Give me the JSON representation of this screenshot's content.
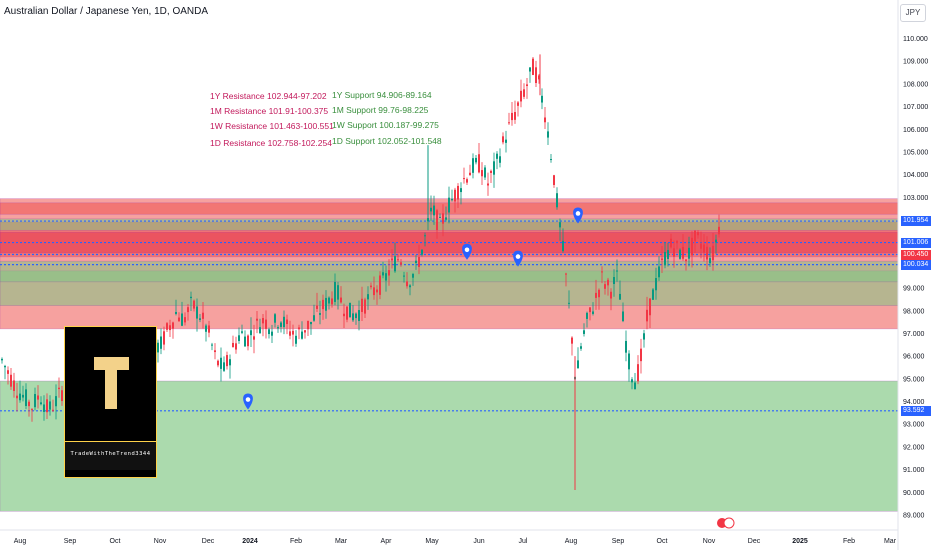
{
  "title": "Australian Dollar / Japanese Yen, 1D, OANDA",
  "currency_button": "JPY",
  "logo": {
    "letter": "T",
    "text": "TradeWithTheTrend3344"
  },
  "annotations": {
    "resistance": [
      "1Y Resistance 102.944-97.202",
      "1M Resistance 101.91-100.375",
      "1W Resistance 101.463-100.551",
      "1D Resistance 102.758-102.254"
    ],
    "support": [
      "1Y Support 94.906-89.164",
      "1M Support 99.76-98.225",
      "1W Support 100.187-99.275",
      "1D Support 102.052-101.548"
    ]
  },
  "price_labels": [
    {
      "value": "101.954",
      "color": "#2962ff"
    },
    {
      "value": "101.006",
      "color": "#2962ff"
    },
    {
      "value": "100.479",
      "color": "#2962ff"
    },
    {
      "value": "100.450",
      "color": "#f23645"
    },
    {
      "value": "100.034",
      "color": "#2962ff"
    },
    {
      "value": "93.592",
      "color": "#2962ff"
    }
  ],
  "chart_data": {
    "type": "candlestick",
    "title": "Australian Dollar / Japanese Yen, 1D, OANDA",
    "y_axis_ticks": [
      "110.000",
      "109.000",
      "108.000",
      "107.000",
      "106.000",
      "105.000",
      "104.000",
      "103.000",
      "102.000",
      "101.000",
      "100.000",
      "99.000",
      "98.000",
      "97.000",
      "96.000",
      "95.000",
      "94.000",
      "93.000",
      "92.000",
      "91.000",
      "90.000",
      "89.000"
    ],
    "ylim": [
      88.9,
      110.3
    ],
    "x_axis_ticks": [
      "Aug",
      "Sep",
      "Oct",
      "Nov",
      "Dec",
      "2024",
      "Feb",
      "Mar",
      "Apr",
      "May",
      "Jun",
      "Jul",
      "Aug",
      "Sep",
      "Oct",
      "Nov",
      "Dec",
      "2025",
      "Feb",
      "Mar"
    ],
    "zones": [
      {
        "from": 102.944,
        "to": 97.202,
        "color": "#ef5350"
      },
      {
        "from": 94.906,
        "to": 89.164,
        "color": "#66bb6a"
      },
      {
        "from": 101.91,
        "to": 100.375,
        "color": "#ef5350"
      },
      {
        "from": 99.76,
        "to": 98.225,
        "color": "#81c784"
      },
      {
        "from": 101.463,
        "to": 100.551,
        "color": "#e53950"
      },
      {
        "from": 100.187,
        "to": 99.275,
        "color": "#81c784"
      },
      {
        "from": 102.758,
        "to": 102.254,
        "color": "#ef5350"
      },
      {
        "from": 102.052,
        "to": 101.548,
        "color": "#81c784"
      }
    ],
    "dotted_levels": [
      101.954,
      101.006,
      100.479,
      100.034,
      93.592
    ],
    "price_path": [
      [
        0,
        96.0
      ],
      [
        8,
        95.3
      ],
      [
        16,
        94.6
      ],
      [
        24,
        94.2
      ],
      [
        32,
        93.8
      ],
      [
        40,
        94.3
      ],
      [
        48,
        93.6
      ],
      [
        56,
        94.0
      ],
      [
        64,
        94.6
      ],
      [
        72,
        95.4
      ],
      [
        80,
        95.9
      ],
      [
        88,
        95.2
      ],
      [
        96,
        94.9
      ],
      [
        104,
        95.2
      ],
      [
        112,
        95.7
      ],
      [
        120,
        95.0
      ],
      [
        128,
        94.2
      ],
      [
        136,
        95.3
      ],
      [
        144,
        95.6
      ],
      [
        152,
        96.6
      ],
      [
        160,
        96.4
      ],
      [
        168,
        97.2
      ],
      [
        176,
        97.9
      ],
      [
        184,
        97.6
      ],
      [
        192,
        98.3
      ],
      [
        200,
        97.8
      ],
      [
        208,
        97.1
      ],
      [
        216,
        95.8
      ],
      [
        224,
        95.4
      ],
      [
        232,
        96.2
      ],
      [
        240,
        97.0
      ],
      [
        248,
        96.8
      ],
      [
        256,
        97.3
      ],
      [
        264,
        97.6
      ],
      [
        272,
        97.3
      ],
      [
        280,
        97.7
      ],
      [
        288,
        97.2
      ],
      [
        296,
        96.9
      ],
      [
        304,
        97.2
      ],
      [
        312,
        97.5
      ],
      [
        320,
        98.0
      ],
      [
        328,
        98.4
      ],
      [
        336,
        98.9
      ],
      [
        344,
        98.2
      ],
      [
        352,
        97.8
      ],
      [
        360,
        98.0
      ],
      [
        368,
        98.5
      ],
      [
        376,
        99.0
      ],
      [
        384,
        99.3
      ],
      [
        392,
        100.0
      ],
      [
        400,
        100.4
      ],
      [
        408,
        99.3
      ],
      [
        416,
        99.8
      ],
      [
        424,
        101.0
      ],
      [
        432,
        102.5
      ],
      [
        440,
        101.7
      ],
      [
        448,
        102.6
      ],
      [
        456,
        103.2
      ],
      [
        464,
        103.8
      ],
      [
        472,
        104.3
      ],
      [
        480,
        104.5
      ],
      [
        488,
        103.6
      ],
      [
        496,
        104.4
      ],
      [
        504,
        105.5
      ],
      [
        512,
        106.4
      ],
      [
        520,
        107.2
      ],
      [
        528,
        108.1
      ],
      [
        534,
        108.8
      ],
      [
        540,
        107.8
      ],
      [
        546,
        106.5
      ],
      [
        552,
        104.6
      ],
      [
        558,
        102.4
      ],
      [
        564,
        100.3
      ],
      [
        568,
        98.6
      ],
      [
        572,
        96.8
      ],
      [
        576,
        94.7
      ],
      [
        580,
        96.2
      ],
      [
        586,
        97.4
      ],
      [
        594,
        98.3
      ],
      [
        602,
        99.4
      ],
      [
        610,
        98.9
      ],
      [
        618,
        99.5
      ],
      [
        624,
        97.2
      ],
      [
        630,
        95.4
      ],
      [
        636,
        94.9
      ],
      [
        642,
        96.1
      ],
      [
        648,
        97.9
      ],
      [
        656,
        99.2
      ],
      [
        664,
        100.3
      ],
      [
        672,
        100.9
      ],
      [
        680,
        100.6
      ],
      [
        688,
        100.4
      ],
      [
        696,
        101.2
      ],
      [
        704,
        100.8
      ],
      [
        712,
        100.3
      ],
      [
        720,
        101.9
      ]
    ],
    "markers": [
      {
        "x": 248,
        "price": 94.0
      },
      {
        "x": 467,
        "price": 100.6
      },
      {
        "x": 518,
        "price": 100.3
      },
      {
        "x": 578,
        "price": 102.2
      }
    ]
  }
}
